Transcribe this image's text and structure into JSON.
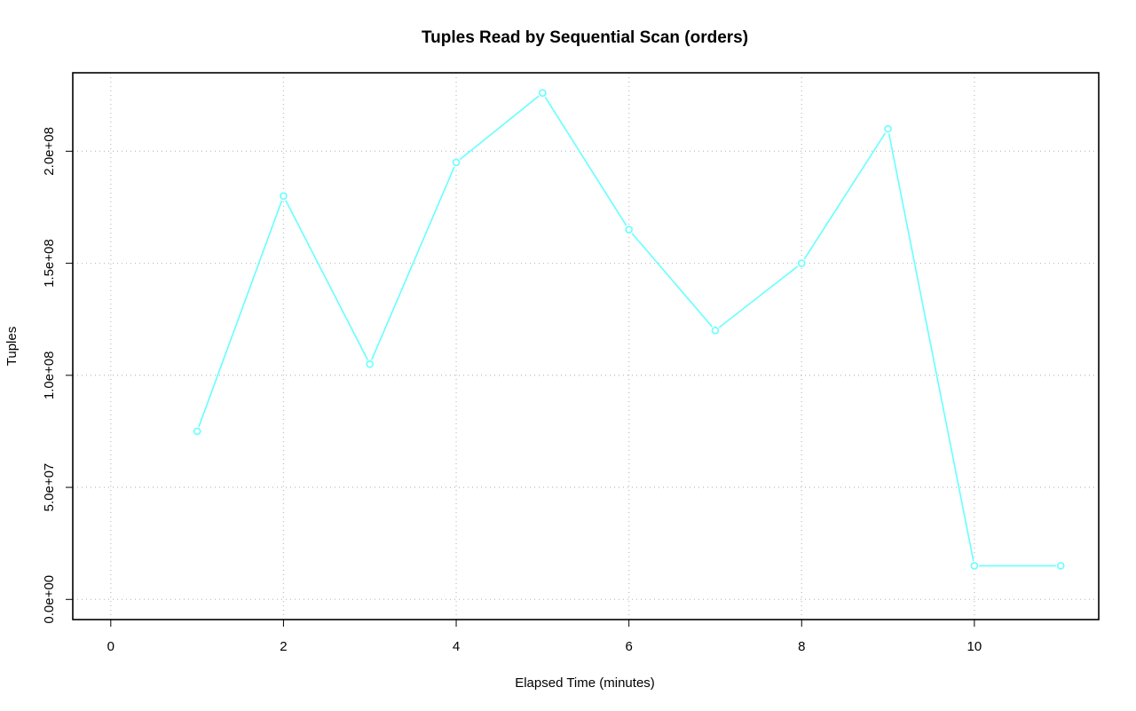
{
  "chart_data": {
    "type": "line",
    "title": "Tuples Read by Sequential Scan (orders)",
    "x_label": "Elapsed Time (minutes)",
    "y_label": "Tuples",
    "x": [
      1,
      2,
      3,
      4,
      5,
      6,
      7,
      8,
      9,
      10,
      11
    ],
    "values": [
      75000000,
      180000000,
      105000000,
      195000000,
      226000000,
      165000000,
      120000000,
      150000000,
      210000000,
      15000000,
      15000000
    ],
    "color": "#66ffff",
    "xlim": [
      -0.44,
      11.44
    ],
    "xticks": [
      0,
      2,
      4,
      6,
      8,
      10
    ],
    "ylim": [
      -9000000,
      235000000
    ],
    "yticks": [
      {
        "value": 0,
        "label": "0.0e+00"
      },
      {
        "value": 50000000,
        "label": "5.0e+07"
      },
      {
        "value": 100000000,
        "label": "1.0e+08"
      },
      {
        "value": 150000000,
        "label": "1.5e+08"
      },
      {
        "value": 200000000,
        "label": "2.0e+08"
      }
    ],
    "grid": true
  }
}
